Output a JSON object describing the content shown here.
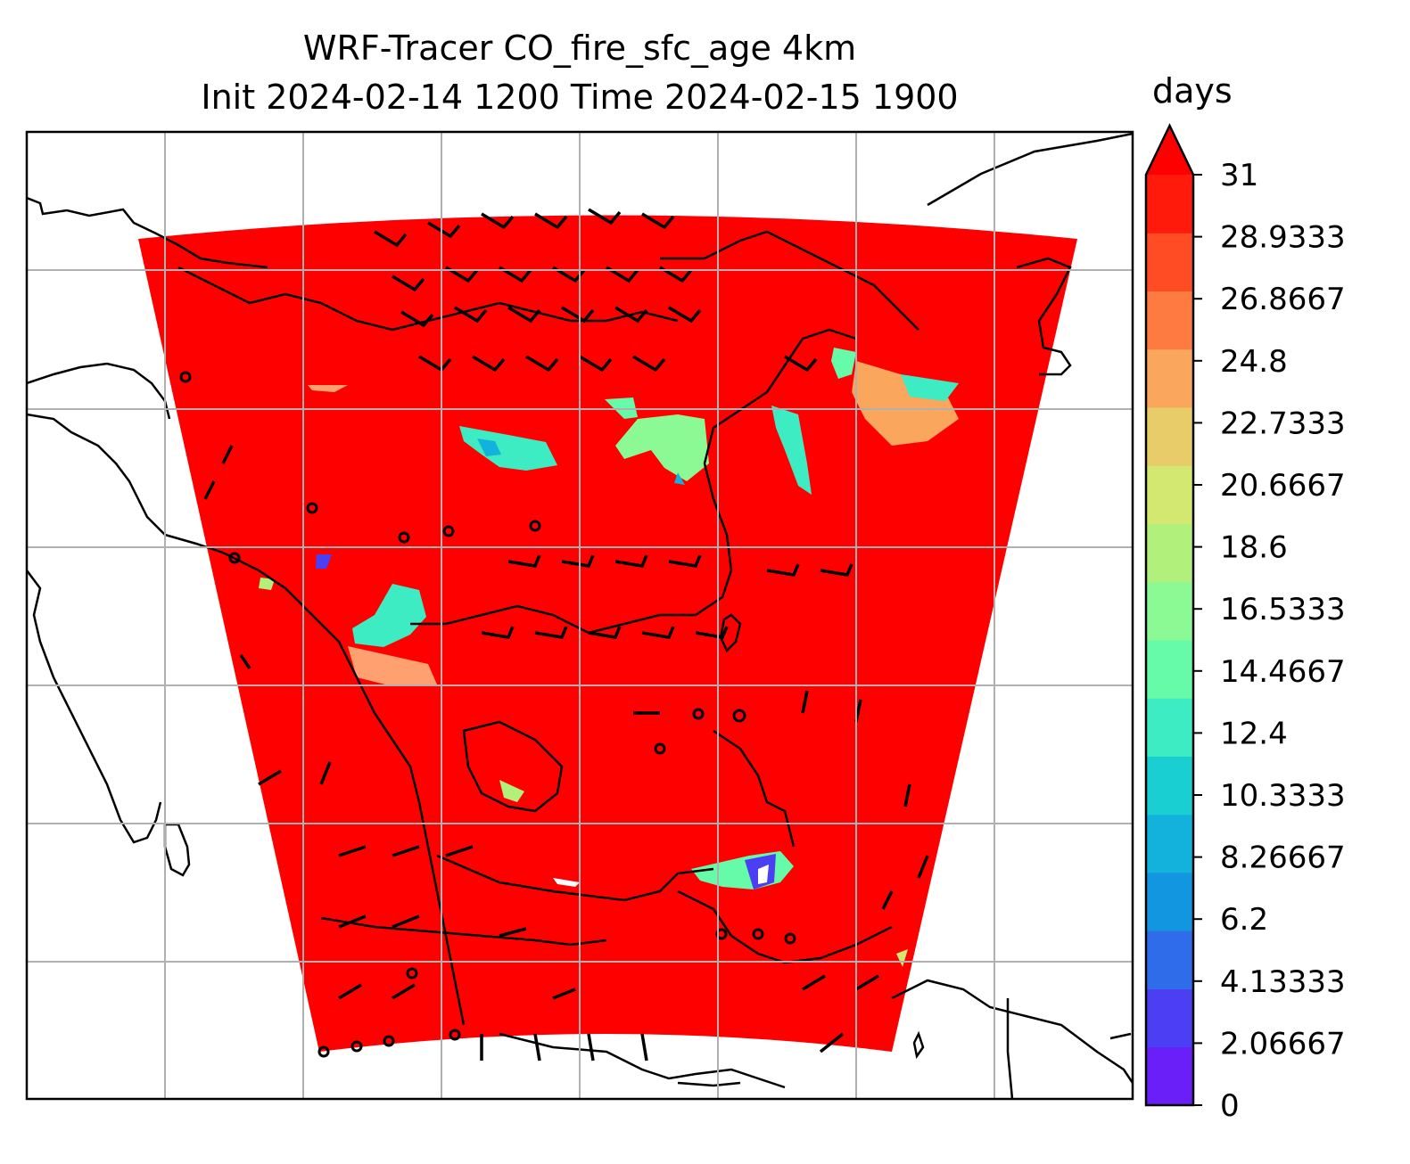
{
  "title": {
    "line1": "WRF-Tracer CO_fire_sfc_age 4km",
    "line2": "Init 2024-02-14 1200 Time 2024-02-15 1900"
  },
  "colorbar": {
    "unit": "days",
    "min": 0,
    "max": 31,
    "extend": "max",
    "tick_labels": [
      "0",
      "2.06667",
      "4.13333",
      "6.2",
      "8.26667",
      "10.3333",
      "12.4",
      "14.4667",
      "16.5333",
      "18.6",
      "20.6667",
      "22.7333",
      "24.8",
      "26.8667",
      "28.9333",
      "31"
    ],
    "colors": [
      "#6a1ef8",
      "#4c3ef2",
      "#2e6cea",
      "#1296e0",
      "#12b2dc",
      "#19cfd2",
      "#3eecc4",
      "#66fba8",
      "#8cfa94",
      "#b2f07c",
      "#d2e870",
      "#e8cc6a",
      "#faa65c",
      "#fd7a40",
      "#ff4c24",
      "#ff1a0c"
    ],
    "extend_color": "#ff0000"
  },
  "map": {
    "field": "CO_fire_sfc_age",
    "background_value_color": "#ff0000",
    "gridlines": true,
    "wind_barbs": true,
    "coastlines": true
  }
}
